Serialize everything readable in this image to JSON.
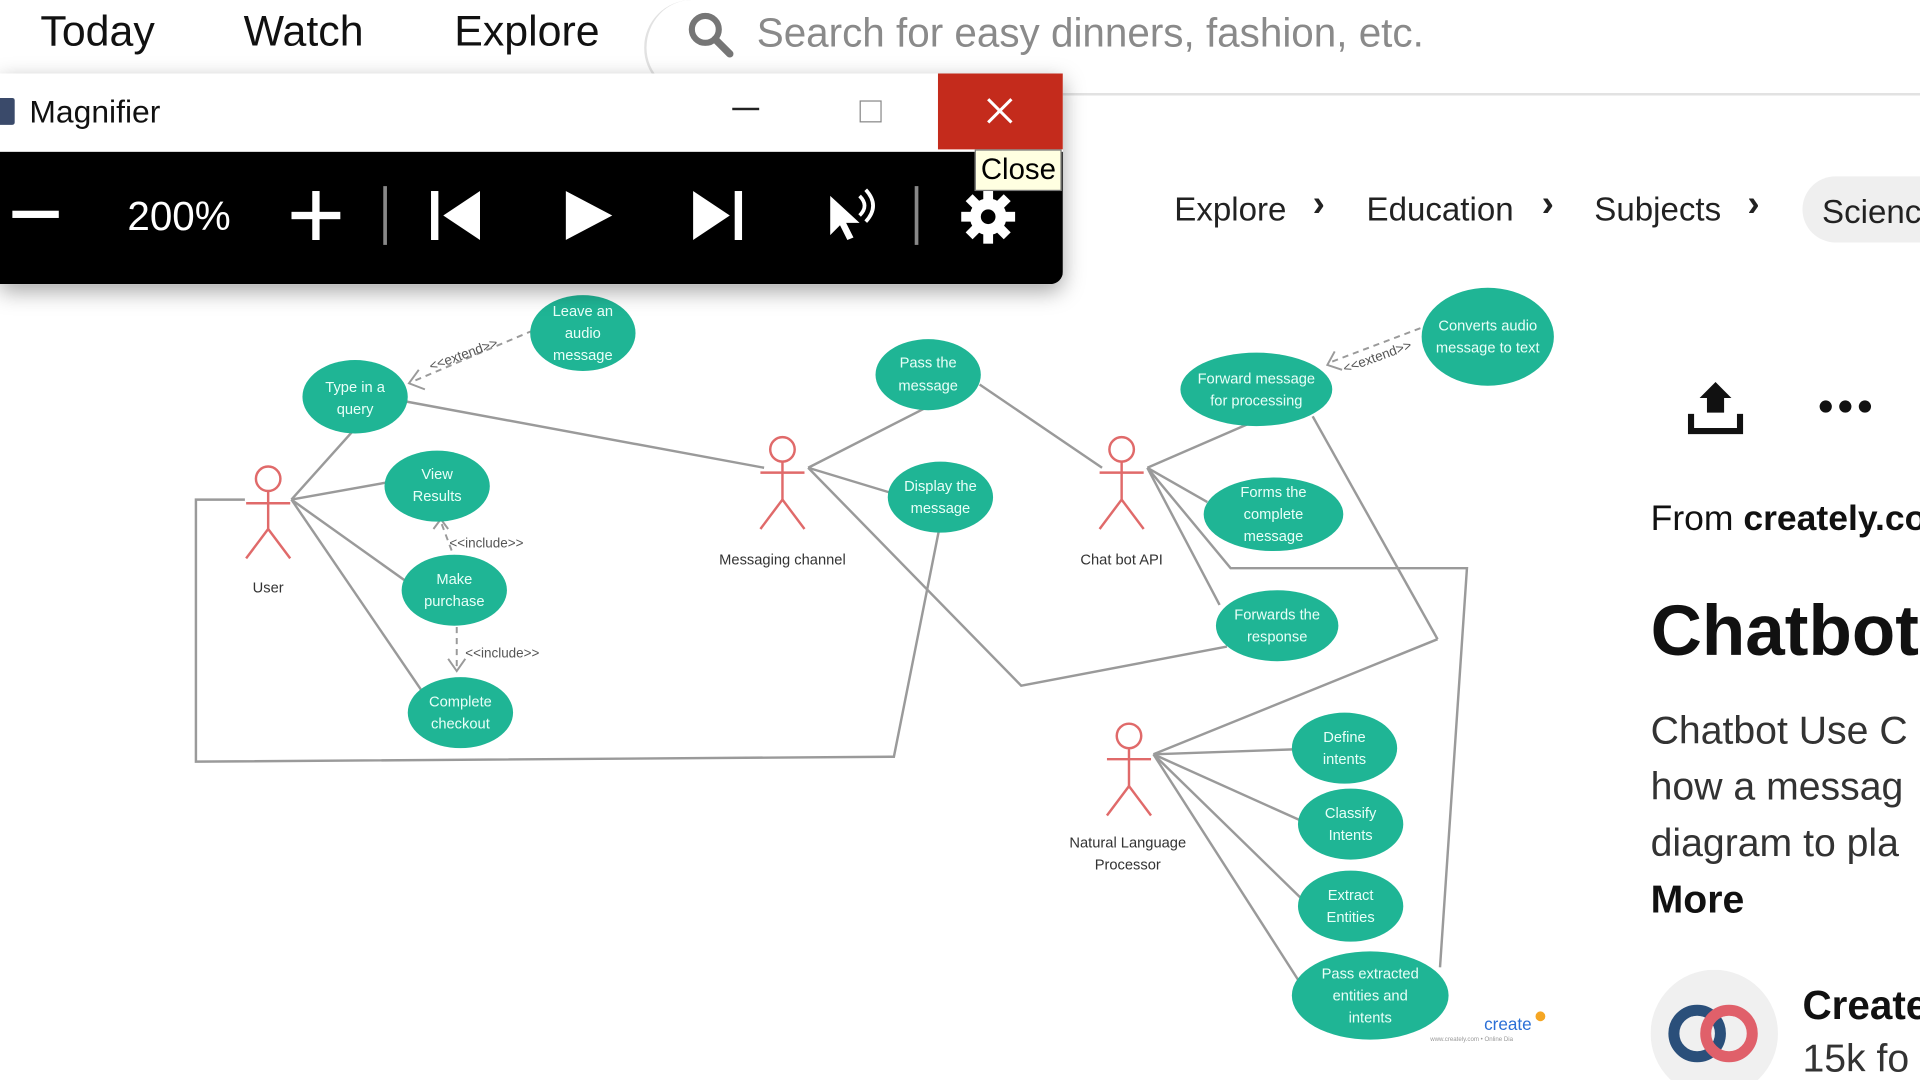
{
  "nav": {
    "today": "Today",
    "watch": "Watch",
    "explore": "Explore",
    "search_placeholder": "Search for easy dinners, fashion, etc."
  },
  "breadcrumbs": [
    "Explore",
    "Education",
    "Subjects",
    "Science"
  ],
  "magnifier": {
    "title": "Magnifier",
    "zoom": "200%",
    "close_tooltip": "Close"
  },
  "diagram": {
    "actors": {
      "user": "User",
      "messaging": "Messaging channel",
      "chatbot": "Chat bot API",
      "nlp_line1": "Natural Language",
      "nlp_line2": "Processor"
    },
    "usecases": {
      "leave_audio": [
        "Leave an",
        "audio",
        "message"
      ],
      "type_query": [
        "Type in a",
        "query"
      ],
      "view_results": [
        "View",
        "Results"
      ],
      "make_purchase": [
        "Make",
        "purchase"
      ],
      "complete_checkout": [
        "Complete",
        "checkout"
      ],
      "pass_message": [
        "Pass the",
        "message"
      ],
      "display_message": [
        "Display the",
        "message"
      ],
      "forward_processing": [
        "Forward message",
        "for processing"
      ],
      "converts_audio": [
        "Converts audio",
        "message to text"
      ],
      "forms_complete": [
        "Forms the",
        "complete",
        "message"
      ],
      "forwards_response": [
        "Forwards the",
        "response"
      ],
      "define_intents": [
        "Define",
        "intents"
      ],
      "classify_intents": [
        "Classify",
        "Intents"
      ],
      "extract_entities": [
        "Extract",
        "Entities"
      ],
      "pass_extracted": [
        "Pass extracted",
        "entities and",
        "intents"
      ]
    },
    "relations": {
      "extend": "<<extend>>",
      "include": "<<include>>"
    },
    "watermark": "create",
    "watermark_small": "www.creately.com • Online Dia"
  },
  "pin": {
    "from_prefix": "From ",
    "from_site": "creately.co",
    "title": "Chatbot",
    "desc_lines": [
      "Chatbot Use C",
      "how a messag",
      "diagram to pla"
    ],
    "more": "More",
    "creator_name": "Create",
    "followers": "15k fo"
  },
  "colors": {
    "usecase": "#1fb595",
    "actor": "#e06a6a",
    "close_red": "#c42b1c"
  }
}
